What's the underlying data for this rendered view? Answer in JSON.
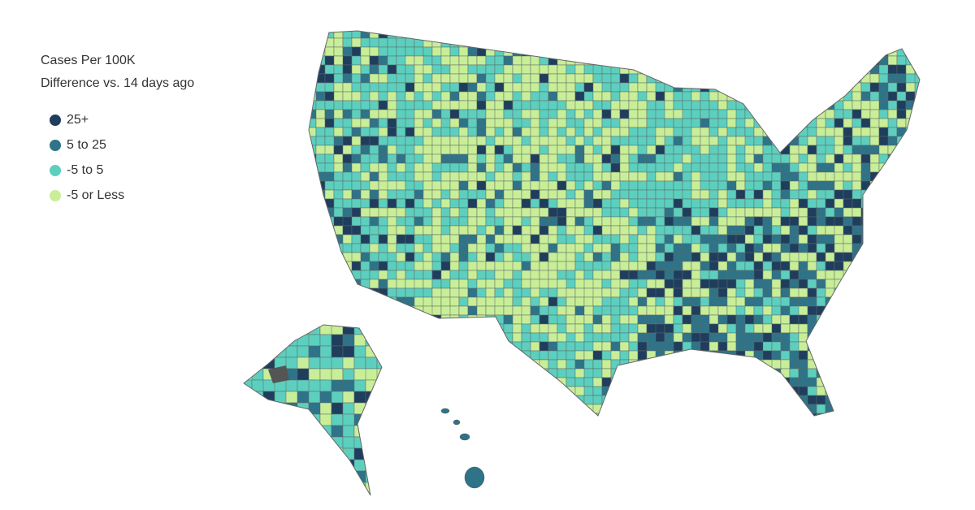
{
  "legend": {
    "title": "Cases Per 100K",
    "subtitle": "Difference vs. 14 days ago",
    "items": [
      {
        "label": "25+",
        "color": "#1f3d5c"
      },
      {
        "label": "5 to 25",
        "color": "#2e7388"
      },
      {
        "label": "-5 to 5",
        "color": "#5dcfbe"
      },
      {
        "label": "-5 or Less",
        "color": "#c9ee98"
      }
    ]
  }
}
